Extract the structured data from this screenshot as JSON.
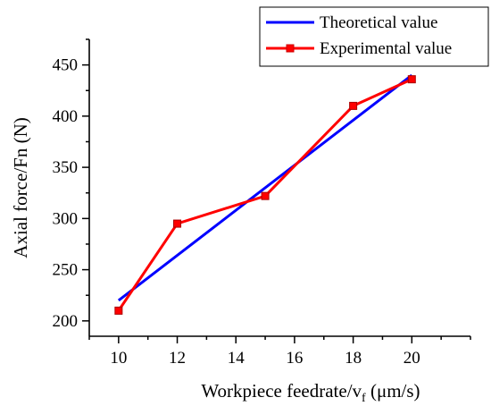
{
  "chart_data": {
    "type": "line",
    "title": "",
    "xlabel": "Workpiece feedrate/v",
    "xlabel_sub": "f",
    "xlabel_unit": " (μm/s)",
    "ylabel": "Axial force/Fn (N)",
    "xlim": [
      9,
      22
    ],
    "ylim": [
      185,
      475
    ],
    "x_ticks": [
      10,
      12,
      14,
      16,
      18,
      20
    ],
    "y_ticks": [
      200,
      250,
      300,
      350,
      400,
      450
    ],
    "legend_position": "top-right",
    "grid": false,
    "series": [
      {
        "name": "Theoretical value",
        "color": "#0000ff",
        "marker": "none",
        "x": [
          10,
          20
        ],
        "y": [
          220,
          440
        ]
      },
      {
        "name": "Experimental value",
        "color": "#ff0000",
        "marker": "square",
        "x": [
          10,
          12,
          15,
          18,
          20
        ],
        "y": [
          210,
          295,
          322,
          410,
          436
        ]
      }
    ]
  }
}
